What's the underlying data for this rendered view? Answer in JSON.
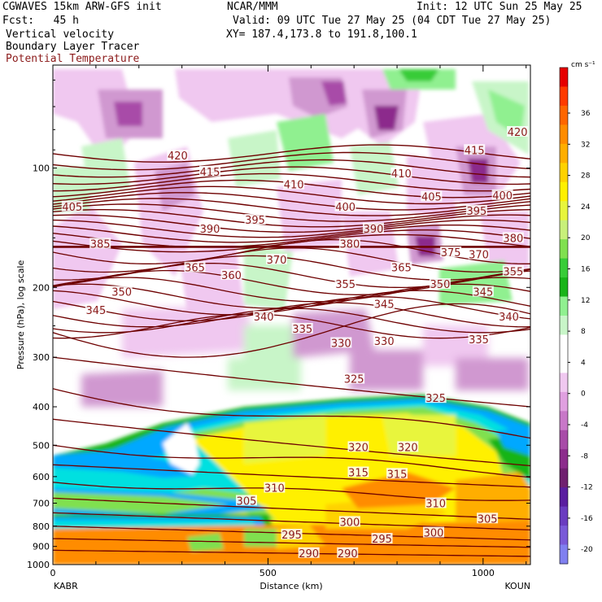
{
  "header": {
    "model": "CGWAVES 15km ARW-GFS init",
    "org": "NCAR/MMM",
    "init": "Init: 12 UTC Sun 25 May 25",
    "fcst": "Fcst:   45 h",
    "valid": "Valid: 09 UTC Tue 27 May 25 (04 CDT Tue 27 May 25)",
    "field1": "Vertical velocity",
    "field2": "Boundary Layer Tracer",
    "field3": "Potential Temperature",
    "xy": "XY= 187.4,173.8 to 191.8,100.1"
  },
  "colors": {
    "theta_line": "#6e0000",
    "theta_label": "#8b1a1a"
  },
  "chart_data": {
    "type": "heatmap",
    "xlabel": "Distance (km)",
    "ylabel": "Pressure (hPa), log scale",
    "xlim": [
      0,
      1110
    ],
    "ylim": [
      1000,
      55
    ],
    "yscale": "log",
    "x_ticks": [
      0,
      500,
      1000
    ],
    "y_ticks": [
      100,
      200,
      300,
      400,
      500,
      600,
      700,
      800,
      900,
      1000
    ],
    "endpoints": {
      "left": "KABR",
      "right": "KOUN"
    },
    "colorbar": {
      "unit": "cm s⁻¹",
      "labels": [
        "36",
        "32",
        "28",
        "24",
        "20",
        "16",
        "12",
        "8",
        "4",
        "0",
        "-4",
        "-8",
        "-12",
        "-16",
        "-20"
      ],
      "colors": [
        "#e60000",
        "#ff3b00",
        "#ff6600",
        "#ff8c00",
        "#ffae00",
        "#ffd200",
        "#fff000",
        "#e8f53c",
        "#c8f07a",
        "#80e050",
        "#38cc38",
        "#19b419",
        "#90f090",
        "#c8f5c8",
        "#ffffff",
        "#ffffff",
        "#f0c8f0",
        "#e0a0e0",
        "#c878c8",
        "#a84ca8",
        "#8c2c8c",
        "#702070",
        "#5a1ea0",
        "#6a3cc0",
        "#7a5ad8",
        "#8080f0"
      ]
    },
    "theta_labels": [
      {
        "v": "420",
        "x": 290,
        "p": 93
      },
      {
        "v": "420",
        "x": 1080,
        "p": 81
      },
      {
        "v": "415",
        "x": 365,
        "p": 102
      },
      {
        "v": "415",
        "x": 980,
        "p": 90
      },
      {
        "v": "410",
        "x": 560,
        "p": 110
      },
      {
        "v": "410",
        "x": 810,
        "p": 103
      },
      {
        "v": "405",
        "x": 45,
        "p": 125
      },
      {
        "v": "405",
        "x": 880,
        "p": 118
      },
      {
        "v": "400",
        "x": 680,
        "p": 125
      },
      {
        "v": "400",
        "x": 1045,
        "p": 117
      },
      {
        "v": "395",
        "x": 470,
        "p": 135
      },
      {
        "v": "395",
        "x": 985,
        "p": 128
      },
      {
        "v": "390",
        "x": 365,
        "p": 142
      },
      {
        "v": "390",
        "x": 745,
        "p": 142
      },
      {
        "v": "385",
        "x": 110,
        "p": 155
      },
      {
        "v": "380",
        "x": 690,
        "p": 155
      },
      {
        "v": "380",
        "x": 1070,
        "p": 150
      },
      {
        "v": "375",
        "x": 925,
        "p": 163
      },
      {
        "v": "370",
        "x": 520,
        "p": 170
      },
      {
        "v": "370",
        "x": 990,
        "p": 165
      },
      {
        "v": "365",
        "x": 330,
        "p": 178
      },
      {
        "v": "365",
        "x": 810,
        "p": 178
      },
      {
        "v": "360",
        "x": 415,
        "p": 186
      },
      {
        "v": "355",
        "x": 680,
        "p": 196
      },
      {
        "v": "355",
        "x": 1070,
        "p": 182
      },
      {
        "v": "350",
        "x": 160,
        "p": 205
      },
      {
        "v": "350",
        "x": 900,
        "p": 196
      },
      {
        "v": "345",
        "x": 100,
        "p": 228
      },
      {
        "v": "345",
        "x": 770,
        "p": 220
      },
      {
        "v": "345",
        "x": 1000,
        "p": 205
      },
      {
        "v": "340",
        "x": 490,
        "p": 237
      },
      {
        "v": "340",
        "x": 1060,
        "p": 237
      },
      {
        "v": "335",
        "x": 580,
        "p": 254
      },
      {
        "v": "335",
        "x": 990,
        "p": 270
      },
      {
        "v": "330",
        "x": 670,
        "p": 276
      },
      {
        "v": "330",
        "x": 770,
        "p": 273
      },
      {
        "v": "325",
        "x": 700,
        "p": 340
      },
      {
        "v": "325",
        "x": 890,
        "p": 380
      },
      {
        "v": "320",
        "x": 710,
        "p": 505
      },
      {
        "v": "320",
        "x": 825,
        "p": 505
      },
      {
        "v": "315",
        "x": 710,
        "p": 585
      },
      {
        "v": "315",
        "x": 800,
        "p": 590
      },
      {
        "v": "310",
        "x": 515,
        "p": 640
      },
      {
        "v": "310",
        "x": 890,
        "p": 700
      },
      {
        "v": "305",
        "x": 450,
        "p": 690
      },
      {
        "v": "305",
        "x": 1010,
        "p": 765
      },
      {
        "v": "300",
        "x": 690,
        "p": 780
      },
      {
        "v": "300",
        "x": 885,
        "p": 830
      },
      {
        "v": "295",
        "x": 555,
        "p": 840
      },
      {
        "v": "295",
        "x": 765,
        "p": 860
      },
      {
        "v": "290",
        "x": 595,
        "p": 935
      },
      {
        "v": "290",
        "x": 685,
        "p": 935
      }
    ]
  }
}
